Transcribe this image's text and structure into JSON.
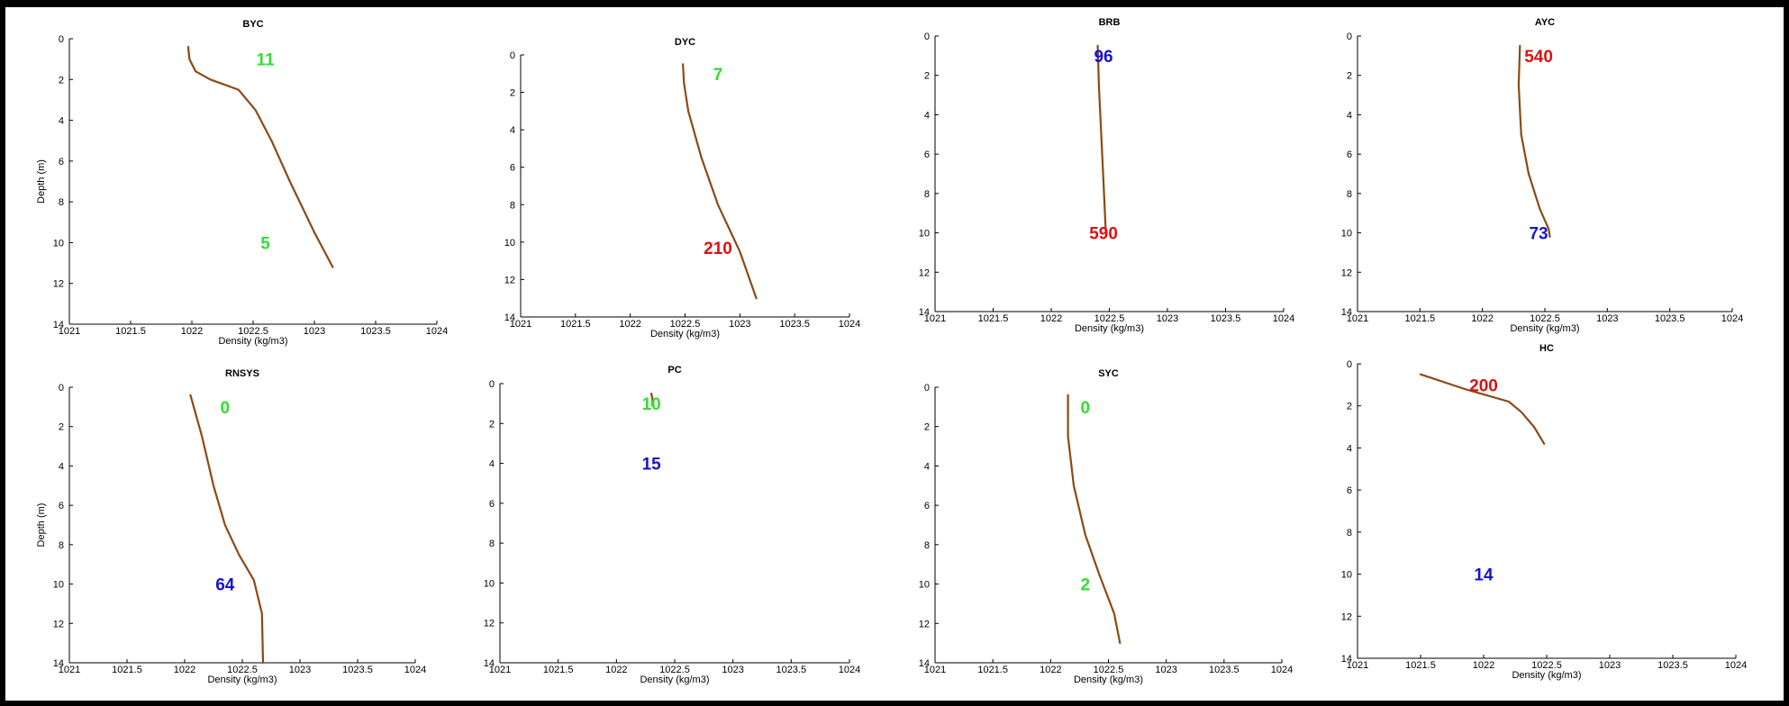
{
  "colors": {
    "profile_line": "#8B4A14",
    "annotation_green": "#33DD33",
    "annotation_blue": "#1515CC",
    "annotation_red": "#DD1111",
    "frame": "#000000"
  },
  "chart_data": [
    {
      "type": "line",
      "title": "BYC",
      "xlabel": "Density (kg/m3)",
      "ylabel": "Depth (m)",
      "xlim": [
        1021,
        1024
      ],
      "ylim": [
        0,
        14
      ],
      "y_reversed": true,
      "xticks": [
        1021,
        1021.5,
        1022,
        1022.5,
        1023,
        1023.5,
        1024
      ],
      "yticks": [
        0,
        2,
        4,
        6,
        8,
        10,
        12,
        14
      ],
      "xtick_labels": [
        "1021",
        "1021.5",
        "1022",
        "1022.5",
        "1023",
        "1023.5",
        "1024"
      ],
      "ytick_labels": [
        "0",
        "2",
        "4",
        "6",
        "8",
        "10",
        "12",
        "14"
      ],
      "series": [
        {
          "x": [
            1021.97,
            1021.98,
            1022.03,
            1022.15,
            1022.38,
            1022.52,
            1022.65,
            1022.8,
            1023.0,
            1023.15
          ],
          "y": [
            0.4,
            1.0,
            1.6,
            2.0,
            2.5,
            3.5,
            5.0,
            7.0,
            9.5,
            11.2
          ]
        }
      ],
      "annotations": [
        {
          "text": "11",
          "x": 1022.6,
          "y": 1.0,
          "color": "green"
        },
        {
          "text": "5",
          "x": 1022.6,
          "y": 10.0,
          "color": "green"
        }
      ]
    },
    {
      "type": "line",
      "title": "DYC",
      "xlabel": "Density (kg/m3)",
      "ylabel": "",
      "xlim": [
        1021,
        1024
      ],
      "ylim": [
        0,
        14
      ],
      "y_reversed": true,
      "xticks": [
        1021,
        1021.5,
        1022,
        1022.5,
        1023,
        1023.5,
        1024
      ],
      "yticks": [
        0,
        2,
        4,
        6,
        8,
        10,
        12,
        14
      ],
      "xtick_labels": [
        "1021",
        "1021.5",
        "1022",
        "1022.5",
        "1023",
        "1023.5",
        "1024"
      ],
      "ytick_labels": [
        "0",
        "2",
        "4",
        "6",
        "8",
        "10",
        "12",
        "14"
      ],
      "series": [
        {
          "x": [
            1022.48,
            1022.49,
            1022.53,
            1022.65,
            1022.8,
            1023.0,
            1023.15
          ],
          "y": [
            0.5,
            1.5,
            3.0,
            5.5,
            8.0,
            10.5,
            13.0
          ]
        }
      ],
      "annotations": [
        {
          "text": "7",
          "x": 1022.8,
          "y": 1.0,
          "color": "green"
        },
        {
          "text": "210",
          "x": 1022.8,
          "y": 10.3,
          "color": "red"
        }
      ]
    },
    {
      "type": "line",
      "title": "BRB",
      "xlabel": "Density (kg/m3)",
      "ylabel": "",
      "xlim": [
        1021,
        1024
      ],
      "ylim": [
        0,
        14
      ],
      "y_reversed": true,
      "xticks": [
        1021,
        1021.5,
        1022,
        1022.5,
        1023,
        1023.5,
        1024
      ],
      "yticks": [
        0,
        2,
        4,
        6,
        8,
        10,
        12,
        14
      ],
      "xtick_labels": [
        "1021",
        "1021.5",
        "1022",
        "1022.5",
        "1023",
        "1023.5",
        "1024"
      ],
      "ytick_labels": [
        "0",
        "2",
        "4",
        "6",
        "8",
        "10",
        "12",
        "14"
      ],
      "series": [
        {
          "x": [
            1022.4,
            1022.41,
            1022.43,
            1022.45,
            1022.47
          ],
          "y": [
            0.5,
            2.5,
            5.0,
            7.5,
            10.0
          ]
        }
      ],
      "annotations": [
        {
          "text": "96",
          "x": 1022.45,
          "y": 1.0,
          "color": "blue"
        },
        {
          "text": "590",
          "x": 1022.45,
          "y": 10.0,
          "color": "red"
        }
      ]
    },
    {
      "type": "line",
      "title": "AYC",
      "xlabel": "Density (kg/m3)",
      "ylabel": "",
      "xlim": [
        1021,
        1024
      ],
      "ylim": [
        0,
        14
      ],
      "y_reversed": true,
      "xticks": [
        1021,
        1021.5,
        1022,
        1022.5,
        1023,
        1023.5,
        1024
      ],
      "yticks": [
        0,
        2,
        4,
        6,
        8,
        10,
        12,
        14
      ],
      "xtick_labels": [
        "1021",
        "1021.5",
        "1022",
        "1022.5",
        "1023",
        "1023.5",
        "1024"
      ],
      "ytick_labels": [
        "0",
        "2",
        "4",
        "6",
        "8",
        "10",
        "12",
        "14"
      ],
      "series": [
        {
          "x": [
            1022.3,
            1022.29,
            1022.31,
            1022.37,
            1022.46,
            1022.53,
            1022.54
          ],
          "y": [
            0.5,
            2.5,
            5.0,
            7.0,
            8.8,
            9.8,
            10.2
          ]
        }
      ],
      "annotations": [
        {
          "text": "540",
          "x": 1022.45,
          "y": 1.0,
          "color": "red"
        },
        {
          "text": "73",
          "x": 1022.45,
          "y": 10.0,
          "color": "blue"
        }
      ]
    },
    {
      "type": "line",
      "title": "RNSYS",
      "xlabel": "Density (kg/m3)",
      "ylabel": "Depth (m)",
      "xlim": [
        1021,
        1024
      ],
      "ylim": [
        0,
        14
      ],
      "y_reversed": true,
      "xticks": [
        1021,
        1021.5,
        1022,
        1022.5,
        1023,
        1023.5,
        1024
      ],
      "yticks": [
        0,
        2,
        4,
        6,
        8,
        10,
        12,
        14
      ],
      "xtick_labels": [
        "1021",
        "1021.5",
        "1022",
        "1022.5",
        "1023",
        "1023.5",
        "1024"
      ],
      "ytick_labels": [
        "0",
        "2",
        "4",
        "6",
        "8",
        "10",
        "12",
        "14"
      ],
      "series": [
        {
          "x": [
            1022.05,
            1022.15,
            1022.25,
            1022.35,
            1022.47,
            1022.6,
            1022.67,
            1022.68
          ],
          "y": [
            0.4,
            2.5,
            5.0,
            7.0,
            8.5,
            9.8,
            11.5,
            14.0
          ]
        }
      ],
      "annotations": [
        {
          "text": "0",
          "x": 1022.35,
          "y": 1.0,
          "color": "green"
        },
        {
          "text": "64",
          "x": 1022.35,
          "y": 10.0,
          "color": "blue"
        }
      ]
    },
    {
      "type": "line",
      "title": "PC",
      "xlabel": "Density (kg/m3)",
      "ylabel": "",
      "xlim": [
        1021,
        1024
      ],
      "ylim": [
        0,
        14
      ],
      "y_reversed": true,
      "xticks": [
        1021,
        1021.5,
        1022,
        1022.5,
        1023,
        1023.5,
        1024
      ],
      "yticks": [
        0,
        2,
        4,
        6,
        8,
        10,
        12,
        14
      ],
      "xtick_labels": [
        "1021",
        "1021.5",
        "1022",
        "1022.5",
        "1023",
        "1023.5",
        "1024"
      ],
      "ytick_labels": [
        "0",
        "2",
        "4",
        "6",
        "8",
        "10",
        "12",
        "14"
      ],
      "series": [
        {
          "x": [
            1022.3,
            1022.31,
            1022.31
          ],
          "y": [
            0.5,
            0.8,
            1.1
          ]
        }
      ],
      "annotations": [
        {
          "text": "10",
          "x": 1022.3,
          "y": 1.0,
          "color": "green"
        },
        {
          "text": "15",
          "x": 1022.3,
          "y": 4.0,
          "color": "blue"
        }
      ]
    },
    {
      "type": "line",
      "title": "SYC",
      "xlabel": "Density (kg/m3)",
      "ylabel": "",
      "xlim": [
        1021,
        1024
      ],
      "ylim": [
        0,
        14
      ],
      "y_reversed": true,
      "xticks": [
        1021,
        1021.5,
        1022,
        1022.5,
        1023,
        1023.5,
        1024
      ],
      "yticks": [
        0,
        2,
        4,
        6,
        8,
        10,
        12,
        14
      ],
      "xtick_labels": [
        "1021",
        "1021.5",
        "1022",
        "1022.5",
        "1023",
        "1023.5",
        "1024"
      ],
      "ytick_labels": [
        "0",
        "2",
        "4",
        "6",
        "8",
        "10",
        "12",
        "14"
      ],
      "series": [
        {
          "x": [
            1022.15,
            1022.15,
            1022.2,
            1022.3,
            1022.42,
            1022.55,
            1022.6
          ],
          "y": [
            0.4,
            2.5,
            5.0,
            7.5,
            9.5,
            11.5,
            13.0
          ]
        }
      ],
      "annotations": [
        {
          "text": "0",
          "x": 1022.3,
          "y": 1.0,
          "color": "green"
        },
        {
          "text": "2",
          "x": 1022.3,
          "y": 10.0,
          "color": "green"
        }
      ]
    },
    {
      "type": "line",
      "title": "HC",
      "xlabel": "Density (kg/m3)",
      "ylabel": "",
      "xlim": [
        1021,
        1024
      ],
      "ylim": [
        0,
        14
      ],
      "y_reversed": true,
      "xticks": [
        1021,
        1021.5,
        1022,
        1022.5,
        1023,
        1023.5,
        1024
      ],
      "yticks": [
        0,
        2,
        4,
        6,
        8,
        10,
        12,
        14
      ],
      "xtick_labels": [
        "1021",
        "1021.5",
        "1022",
        "1022.5",
        "1023",
        "1023.5",
        "1024"
      ],
      "ytick_labels": [
        "0",
        "2",
        "4",
        "6",
        "8",
        "10",
        "12",
        "14"
      ],
      "series": [
        {
          "x": [
            1021.5,
            1021.85,
            1022.2,
            1022.3,
            1022.4,
            1022.48
          ],
          "y": [
            0.5,
            1.2,
            1.8,
            2.3,
            3.0,
            3.8
          ]
        }
      ],
      "annotations": [
        {
          "text": "200",
          "x": 1022.0,
          "y": 1.0,
          "color": "red"
        },
        {
          "text": "14",
          "x": 1022.0,
          "y": 10.0,
          "color": "blue"
        }
      ]
    }
  ]
}
